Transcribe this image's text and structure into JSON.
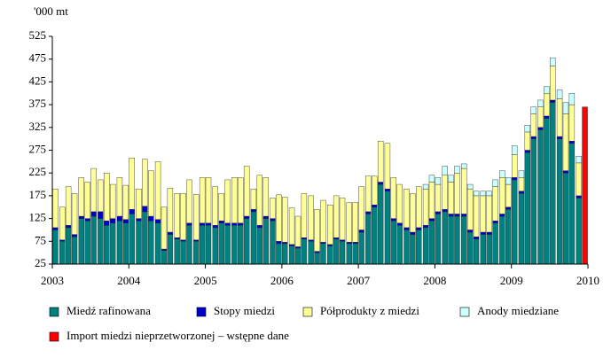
{
  "chart_data": {
    "type": "stacked_bar",
    "y_axis_label": "'000 mt",
    "x": [
      2003.04,
      2003.13,
      2003.21,
      2003.29,
      2003.38,
      2003.46,
      2003.54,
      2003.63,
      2003.71,
      2003.79,
      2003.88,
      2003.96,
      2004.04,
      2004.13,
      2004.21,
      2004.29,
      2004.38,
      2004.46,
      2004.54,
      2004.63,
      2004.71,
      2004.79,
      2004.88,
      2004.96,
      2005.04,
      2005.13,
      2005.21,
      2005.29,
      2005.38,
      2005.46,
      2005.54,
      2005.63,
      2005.71,
      2005.79,
      2005.88,
      2005.96,
      2006.04,
      2006.13,
      2006.21,
      2006.29,
      2006.38,
      2006.46,
      2006.54,
      2006.63,
      2006.71,
      2006.79,
      2006.88,
      2006.96,
      2007.04,
      2007.13,
      2007.21,
      2007.29,
      2007.38,
      2007.46,
      2007.54,
      2007.63,
      2007.71,
      2007.79,
      2007.88,
      2007.96,
      2008.04,
      2008.13,
      2008.21,
      2008.29,
      2008.38,
      2008.46,
      2008.54,
      2008.63,
      2008.71,
      2008.79,
      2008.88,
      2008.96,
      2009.04,
      2009.13,
      2009.21,
      2009.29,
      2009.38,
      2009.46,
      2009.54,
      2009.63,
      2009.71,
      2009.79,
      2009.88,
      2009.96
    ],
    "series": [
      {
        "name": "Miedź rafinowana",
        "color": "#00807f",
        "values": [
          100,
          75,
          105,
          85,
          125,
          120,
          130,
          125,
          110,
          115,
          120,
          115,
          135,
          120,
          140,
          120,
          115,
          55,
          90,
          80,
          75,
          110,
          75,
          110,
          110,
          105,
          115,
          110,
          110,
          110,
          125,
          140,
          105,
          125,
          120,
          70,
          70,
          65,
          60,
          80,
          75,
          50,
          70,
          65,
          80,
          75,
          70,
          70,
          95,
          135,
          150,
          200,
          185,
          120,
          110,
          100,
          90,
          100,
          105,
          120,
          135,
          140,
          130,
          130,
          130,
          95,
          80,
          90,
          90,
          115,
          130,
          145,
          210,
          180,
          270,
          300,
          320,
          345,
          380,
          300,
          225,
          290,
          170,
          null
        ]
      },
      {
        "name": "Stopy miedzi",
        "color": "#0000cc",
        "values": [
          5,
          3,
          5,
          5,
          5,
          5,
          10,
          15,
          10,
          10,
          10,
          8,
          10,
          5,
          12,
          10,
          8,
          3,
          5,
          3,
          3,
          5,
          3,
          5,
          5,
          5,
          5,
          5,
          5,
          5,
          5,
          5,
          5,
          5,
          5,
          5,
          3,
          3,
          3,
          3,
          3,
          3,
          3,
          3,
          3,
          3,
          3,
          3,
          5,
          5,
          5,
          5,
          5,
          5,
          5,
          5,
          5,
          5,
          5,
          5,
          5,
          5,
          5,
          5,
          5,
          5,
          5,
          5,
          5,
          5,
          5,
          5,
          5,
          5,
          5,
          5,
          5,
          5,
          5,
          5,
          5,
          5,
          5,
          null
        ]
      },
      {
        "name": "Półprodukty z miedzi",
        "color": "#ffff99",
        "values": [
          85,
          72,
          85,
          90,
          85,
          80,
          95,
          70,
          105,
          75,
          85,
          75,
          113,
          65,
          103,
          100,
          127,
          92,
          97,
          97,
          102,
          95,
          100,
          100,
          100,
          85,
          60,
          95,
          100,
          100,
          110,
          45,
          110,
          85,
          45,
          102,
          99,
          80,
          67,
          97,
          97,
          92,
          92,
          87,
          92,
          92,
          87,
          87,
          95,
          78,
          63,
          90,
          100,
          90,
          85,
          85,
          85,
          90,
          80,
          80,
          60,
          75,
          70,
          90,
          100,
          90,
          90,
          80,
          80,
          75,
          80,
          50,
          50,
          30,
          40,
          50,
          45,
          50,
          75,
          83,
          125,
          80,
          72,
          null
        ]
      },
      {
        "name": "Anody miedziane",
        "color": "#ccffff",
        "values": [
          0,
          0,
          0,
          0,
          0,
          0,
          0,
          0,
          0,
          0,
          0,
          0,
          0,
          0,
          0,
          0,
          0,
          0,
          0,
          0,
          0,
          0,
          0,
          0,
          0,
          0,
          0,
          0,
          0,
          0,
          0,
          0,
          0,
          0,
          0,
          0,
          0,
          0,
          0,
          0,
          0,
          0,
          0,
          0,
          0,
          0,
          0,
          0,
          0,
          0,
          0,
          0,
          0,
          0,
          0,
          0,
          0,
          0,
          10,
          15,
          15,
          20,
          15,
          15,
          10,
          10,
          10,
          10,
          10,
          15,
          15,
          15,
          20,
          15,
          15,
          15,
          15,
          15,
          18,
          20,
          25,
          25,
          15,
          null
        ]
      },
      {
        "name": "Import miedzi nieprzetworzonej – wstępne dane",
        "color": "#ff0000",
        "values": [
          null,
          null,
          null,
          null,
          null,
          null,
          null,
          null,
          null,
          null,
          null,
          null,
          null,
          null,
          null,
          null,
          null,
          null,
          null,
          null,
          null,
          null,
          null,
          null,
          null,
          null,
          null,
          null,
          null,
          null,
          null,
          null,
          null,
          null,
          null,
          null,
          null,
          null,
          null,
          null,
          null,
          null,
          null,
          null,
          null,
          null,
          null,
          null,
          null,
          null,
          null,
          null,
          null,
          null,
          null,
          null,
          null,
          null,
          null,
          null,
          null,
          null,
          null,
          null,
          null,
          null,
          null,
          null,
          null,
          null,
          null,
          null,
          null,
          null,
          null,
          null,
          null,
          null,
          null,
          null,
          null,
          null,
          null,
          370
        ]
      }
    ],
    "ylim": [
      25,
      525
    ],
    "yticks": [
      25,
      75,
      125,
      175,
      225,
      275,
      325,
      375,
      425,
      475,
      525
    ],
    "xlim": [
      2003,
      2010
    ],
    "xticks": [
      2003,
      2004,
      2005,
      2006,
      2007,
      2008,
      2009,
      2010
    ]
  }
}
